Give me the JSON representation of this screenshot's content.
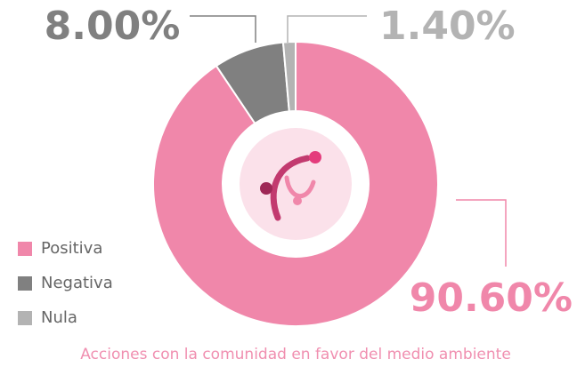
{
  "chart_data": {
    "type": "donut",
    "caption": "Acciones con la comunidad en favor del medio ambiente",
    "categories": [
      "Positiva",
      "Negativa",
      "Nula"
    ],
    "values": [
      90.6,
      8.0,
      1.4
    ],
    "value_labels": [
      "90.60%",
      "8.00%",
      "1.40%"
    ],
    "colors": [
      "#f087aa",
      "#808080",
      "#b3b3b3"
    ],
    "legend": "bottom-left"
  }
}
